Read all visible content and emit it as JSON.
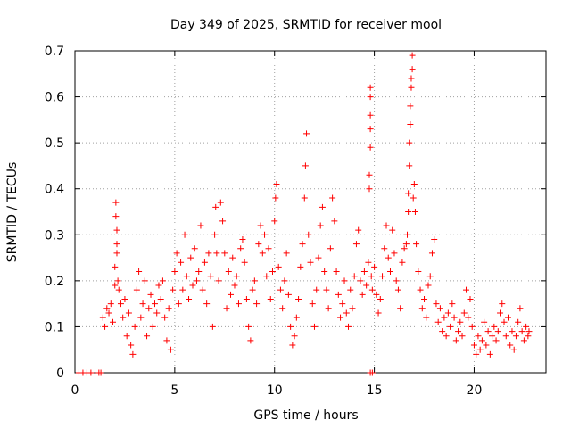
{
  "chart_data": {
    "type": "scatter",
    "title": "Day 349 of 2025, SRMTID for receiver mool",
    "xlabel": "GPS time / hours",
    "ylabel": "SRMTID / TECUs",
    "xlim": [
      0,
      23.6
    ],
    "ylim": [
      0,
      0.7
    ],
    "xticks": [
      0,
      5,
      10,
      15,
      20
    ],
    "xtick_labels": [
      "0",
      "5",
      "10",
      "15",
      "20"
    ],
    "yticks": [
      0,
      0.1,
      0.2,
      0.3,
      0.4,
      0.5,
      0.6,
      0.7
    ],
    "ytick_labels": [
      "0",
      "0.1",
      "0.2",
      "0.3",
      "0.4",
      "0.5",
      "0.6",
      "0.7"
    ],
    "grid": true,
    "marker": "plus",
    "color": "#ff0000",
    "series": [
      {
        "name": "SRMTID",
        "points": [
          [
            0.2,
            0
          ],
          [
            0.4,
            0
          ],
          [
            0.6,
            0
          ],
          [
            0.8,
            0
          ],
          [
            1.2,
            0
          ],
          [
            1.3,
            0
          ],
          [
            14.8,
            0
          ],
          [
            14.9,
            0
          ],
          [
            1.4,
            0.12
          ],
          [
            1.5,
            0.1
          ],
          [
            1.6,
            0.14
          ],
          [
            1.7,
            0.13
          ],
          [
            1.8,
            0.15
          ],
          [
            1.9,
            0.11
          ],
          [
            2.0,
            0.19
          ],
          [
            2.0,
            0.23
          ],
          [
            2.05,
            0.37
          ],
          [
            2.05,
            0.34
          ],
          [
            2.1,
            0.31
          ],
          [
            2.1,
            0.28
          ],
          [
            2.1,
            0.26
          ],
          [
            2.15,
            0.2
          ],
          [
            2.2,
            0.18
          ],
          [
            2.3,
            0.15
          ],
          [
            2.4,
            0.12
          ],
          [
            2.5,
            0.16
          ],
          [
            2.6,
            0.08
          ],
          [
            2.7,
            0.13
          ],
          [
            2.8,
            0.06
          ],
          [
            2.9,
            0.04
          ],
          [
            3.0,
            0.1
          ],
          [
            3.1,
            0.18
          ],
          [
            3.2,
            0.22
          ],
          [
            3.3,
            0.12
          ],
          [
            3.4,
            0.15
          ],
          [
            3.5,
            0.2
          ],
          [
            3.6,
            0.08
          ],
          [
            3.7,
            0.14
          ],
          [
            3.8,
            0.17
          ],
          [
            3.9,
            0.1
          ],
          [
            4.0,
            0.15
          ],
          [
            4.1,
            0.13
          ],
          [
            4.2,
            0.19
          ],
          [
            4.3,
            0.16
          ],
          [
            4.4,
            0.2
          ],
          [
            4.5,
            0.12
          ],
          [
            4.6,
            0.07
          ],
          [
            4.7,
            0.14
          ],
          [
            4.8,
            0.05
          ],
          [
            4.9,
            0.18
          ],
          [
            5.0,
            0.22
          ],
          [
            5.1,
            0.26
          ],
          [
            5.2,
            0.15
          ],
          [
            5.3,
            0.24
          ],
          [
            5.4,
            0.18
          ],
          [
            5.5,
            0.3
          ],
          [
            5.6,
            0.21
          ],
          [
            5.7,
            0.16
          ],
          [
            5.8,
            0.25
          ],
          [
            5.9,
            0.19
          ],
          [
            6.0,
            0.27
          ],
          [
            6.1,
            0.2
          ],
          [
            6.2,
            0.22
          ],
          [
            6.3,
            0.32
          ],
          [
            6.4,
            0.18
          ],
          [
            6.5,
            0.24
          ],
          [
            6.6,
            0.15
          ],
          [
            6.7,
            0.26
          ],
          [
            6.8,
            0.21
          ],
          [
            6.9,
            0.1
          ],
          [
            7.0,
            0.3
          ],
          [
            7.05,
            0.36
          ],
          [
            7.1,
            0.26
          ],
          [
            7.2,
            0.2
          ],
          [
            7.3,
            0.37
          ],
          [
            7.4,
            0.33
          ],
          [
            7.5,
            0.26
          ],
          [
            7.6,
            0.14
          ],
          [
            7.7,
            0.22
          ],
          [
            7.8,
            0.17
          ],
          [
            7.9,
            0.25
          ],
          [
            8.0,
            0.19
          ],
          [
            8.1,
            0.21
          ],
          [
            8.2,
            0.15
          ],
          [
            8.3,
            0.27
          ],
          [
            8.4,
            0.29
          ],
          [
            8.5,
            0.24
          ],
          [
            8.6,
            0.16
          ],
          [
            8.7,
            0.1
          ],
          [
            8.8,
            0.07
          ],
          [
            8.9,
            0.18
          ],
          [
            9.0,
            0.2
          ],
          [
            9.1,
            0.15
          ],
          [
            9.2,
            0.28
          ],
          [
            9.3,
            0.32
          ],
          [
            9.4,
            0.26
          ],
          [
            9.5,
            0.3
          ],
          [
            9.6,
            0.21
          ],
          [
            9.7,
            0.27
          ],
          [
            9.8,
            0.16
          ],
          [
            9.9,
            0.22
          ],
          [
            10.0,
            0.33
          ],
          [
            10.05,
            0.38
          ],
          [
            10.1,
            0.41
          ],
          [
            10.2,
            0.23
          ],
          [
            10.3,
            0.18
          ],
          [
            10.4,
            0.14
          ],
          [
            10.5,
            0.2
          ],
          [
            10.6,
            0.26
          ],
          [
            10.7,
            0.17
          ],
          [
            10.8,
            0.1
          ],
          [
            10.9,
            0.06
          ],
          [
            11.0,
            0.08
          ],
          [
            11.1,
            0.12
          ],
          [
            11.2,
            0.16
          ],
          [
            11.3,
            0.23
          ],
          [
            11.4,
            0.28
          ],
          [
            11.5,
            0.38
          ],
          [
            11.55,
            0.45
          ],
          [
            11.6,
            0.52
          ],
          [
            11.7,
            0.3
          ],
          [
            11.8,
            0.24
          ],
          [
            11.9,
            0.15
          ],
          [
            12.0,
            0.1
          ],
          [
            12.1,
            0.18
          ],
          [
            12.2,
            0.25
          ],
          [
            12.3,
            0.32
          ],
          [
            12.4,
            0.36
          ],
          [
            12.5,
            0.22
          ],
          [
            12.6,
            0.18
          ],
          [
            12.7,
            0.14
          ],
          [
            12.8,
            0.27
          ],
          [
            12.9,
            0.38
          ],
          [
            13.0,
            0.33
          ],
          [
            13.1,
            0.22
          ],
          [
            13.2,
            0.17
          ],
          [
            13.3,
            0.12
          ],
          [
            13.4,
            0.15
          ],
          [
            13.5,
            0.2
          ],
          [
            13.6,
            0.13
          ],
          [
            13.7,
            0.1
          ],
          [
            13.8,
            0.18
          ],
          [
            13.9,
            0.14
          ],
          [
            14.0,
            0.21
          ],
          [
            14.1,
            0.28
          ],
          [
            14.2,
            0.31
          ],
          [
            14.3,
            0.2
          ],
          [
            14.4,
            0.17
          ],
          [
            14.5,
            0.22
          ],
          [
            14.6,
            0.19
          ],
          [
            14.7,
            0.24
          ],
          [
            14.75,
            0.4
          ],
          [
            14.75,
            0.43
          ],
          [
            14.8,
            0.49
          ],
          [
            14.8,
            0.53
          ],
          [
            14.8,
            0.56
          ],
          [
            14.8,
            0.6
          ],
          [
            14.8,
            0.62
          ],
          [
            14.85,
            0.21
          ],
          [
            14.9,
            0.18
          ],
          [
            15.0,
            0.23
          ],
          [
            15.1,
            0.17
          ],
          [
            15.2,
            0.13
          ],
          [
            15.3,
            0.16
          ],
          [
            15.4,
            0.21
          ],
          [
            15.5,
            0.27
          ],
          [
            15.6,
            0.32
          ],
          [
            15.7,
            0.25
          ],
          [
            15.8,
            0.22
          ],
          [
            15.9,
            0.31
          ],
          [
            16.0,
            0.26
          ],
          [
            16.1,
            0.2
          ],
          [
            16.2,
            0.18
          ],
          [
            16.3,
            0.14
          ],
          [
            16.4,
            0.24
          ],
          [
            16.5,
            0.27
          ],
          [
            16.6,
            0.28
          ],
          [
            16.65,
            0.3
          ],
          [
            16.7,
            0.35
          ],
          [
            16.7,
            0.39
          ],
          [
            16.75,
            0.45
          ],
          [
            16.75,
            0.5
          ],
          [
            16.8,
            0.54
          ],
          [
            16.8,
            0.58
          ],
          [
            16.85,
            0.62
          ],
          [
            16.85,
            0.64
          ],
          [
            16.9,
            0.66
          ],
          [
            16.9,
            0.69
          ],
          [
            16.95,
            0.38
          ],
          [
            17.0,
            0.41
          ],
          [
            17.05,
            0.35
          ],
          [
            17.1,
            0.28
          ],
          [
            17.2,
            0.22
          ],
          [
            17.3,
            0.18
          ],
          [
            17.4,
            0.14
          ],
          [
            17.5,
            0.16
          ],
          [
            17.6,
            0.12
          ],
          [
            17.7,
            0.19
          ],
          [
            17.8,
            0.21
          ],
          [
            17.9,
            0.26
          ],
          [
            18.0,
            0.29
          ],
          [
            18.1,
            0.15
          ],
          [
            18.2,
            0.11
          ],
          [
            18.3,
            0.14
          ],
          [
            18.4,
            0.09
          ],
          [
            18.5,
            0.12
          ],
          [
            18.6,
            0.08
          ],
          [
            18.7,
            0.13
          ],
          [
            18.8,
            0.1
          ],
          [
            18.9,
            0.15
          ],
          [
            19.0,
            0.12
          ],
          [
            19.1,
            0.07
          ],
          [
            19.2,
            0.09
          ],
          [
            19.3,
            0.11
          ],
          [
            19.4,
            0.08
          ],
          [
            19.5,
            0.13
          ],
          [
            19.6,
            0.18
          ],
          [
            19.7,
            0.12
          ],
          [
            19.8,
            0.16
          ],
          [
            19.9,
            0.1
          ],
          [
            20.0,
            0.06
          ],
          [
            20.1,
            0.04
          ],
          [
            20.2,
            0.08
          ],
          [
            20.3,
            0.05
          ],
          [
            20.4,
            0.07
          ],
          [
            20.5,
            0.11
          ],
          [
            20.6,
            0.06
          ],
          [
            20.7,
            0.09
          ],
          [
            20.8,
            0.04
          ],
          [
            20.9,
            0.08
          ],
          [
            21.0,
            0.1
          ],
          [
            21.1,
            0.07
          ],
          [
            21.2,
            0.09
          ],
          [
            21.3,
            0.13
          ],
          [
            21.4,
            0.15
          ],
          [
            21.5,
            0.11
          ],
          [
            21.6,
            0.08
          ],
          [
            21.7,
            0.12
          ],
          [
            21.8,
            0.06
          ],
          [
            21.9,
            0.09
          ],
          [
            22.0,
            0.05
          ],
          [
            22.1,
            0.08
          ],
          [
            22.2,
            0.11
          ],
          [
            22.3,
            0.14
          ],
          [
            22.4,
            0.09
          ],
          [
            22.5,
            0.07
          ],
          [
            22.6,
            0.1
          ],
          [
            22.7,
            0.08
          ],
          [
            22.75,
            0.09
          ]
        ]
      }
    ]
  }
}
